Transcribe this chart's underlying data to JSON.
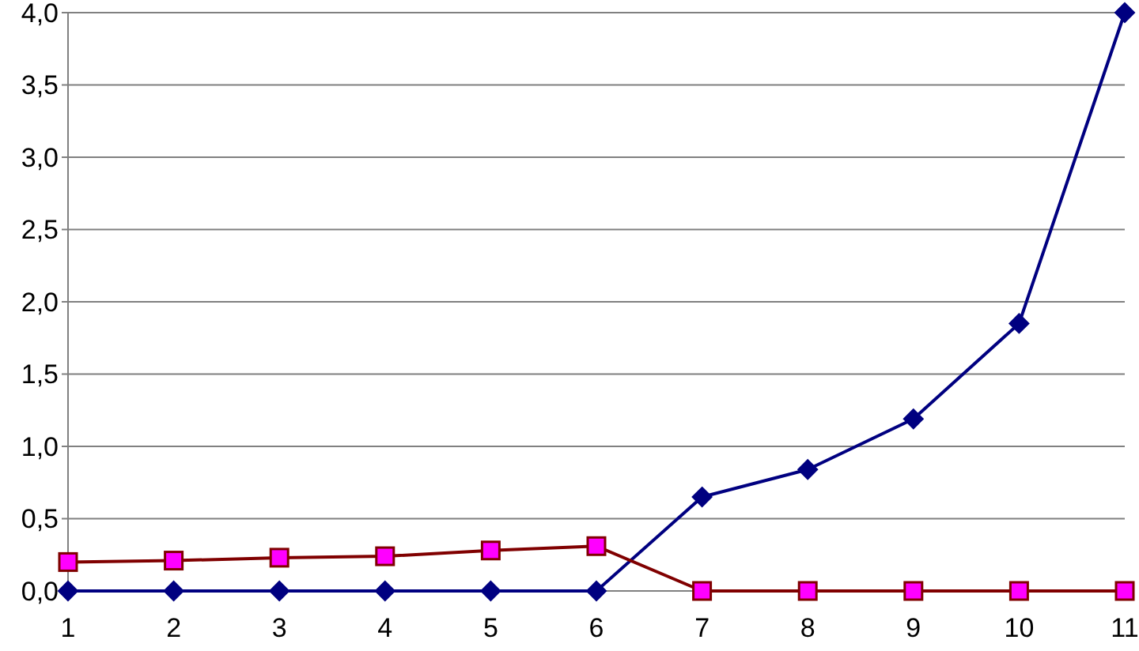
{
  "chart_data": {
    "type": "line",
    "categories": [
      "1",
      "2",
      "3",
      "4",
      "5",
      "6",
      "7",
      "8",
      "9",
      "10",
      "11"
    ],
    "series": [
      {
        "color": "#000080",
        "marker": "diamond",
        "values": [
          0,
          0,
          0,
          0,
          0,
          0,
          0.65,
          0.84,
          1.19,
          1.85,
          4.0
        ]
      },
      {
        "color": "#800000",
        "marker": "square",
        "colors": [
          "#ff00ff",
          "#ff00ff",
          "#ff00ff",
          "#ff00ff",
          "#ff00ff",
          "#ff00ff",
          "#ff00ff",
          "#ff00ff",
          "#ff00ff",
          "#ff00ff",
          "#ff00ff"
        ],
        "values": [
          0.2,
          0.21,
          0.23,
          0.24,
          0.28,
          0.31,
          0,
          0,
          0,
          0,
          0
        ]
      }
    ],
    "ylim": [
      0,
      4
    ],
    "yticks": [
      {
        "value": 0,
        "label": "0,0"
      },
      {
        "value": 0.5,
        "label": "0,5"
      },
      {
        "value": 1,
        "label": "1,0"
      },
      {
        "value": 1.5,
        "label": "1,5"
      },
      {
        "value": 2,
        "label": "2,0"
      },
      {
        "value": 2.5,
        "label": "2,5"
      },
      {
        "value": 3,
        "label": "3,0"
      },
      {
        "value": 3.5,
        "label": "3,5"
      },
      {
        "value": 4,
        "label": "4,0"
      }
    ],
    "grid": "y",
    "line_style": "solid"
  }
}
